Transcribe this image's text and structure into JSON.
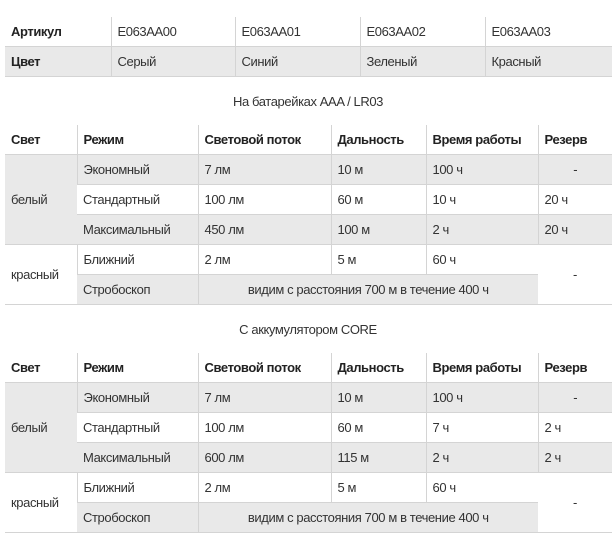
{
  "specs": {
    "article_label": "Артикул",
    "articles": [
      "E063AA00",
      "E063AA01",
      "E063AA02",
      "E063AA03"
    ],
    "color_label": "Цвет",
    "colors": [
      "Серый",
      "Синий",
      "Зеленый",
      "Красный"
    ]
  },
  "headers": [
    "Свет",
    "Режим",
    "Световой поток",
    "Дальность",
    "Время работы",
    "Резерв"
  ],
  "battery": {
    "title": "На батарейках AAA / LR03",
    "white": "белый",
    "red": "красный",
    "rows": [
      {
        "mode": "Экономный",
        "flux": "7 лм",
        "range": "10 м",
        "time": "100 ч",
        "reserve": "-"
      },
      {
        "mode": "Стандартный",
        "flux": "100 лм",
        "range": "60 м",
        "time": "10 ч",
        "reserve": "20 ч"
      },
      {
        "mode": "Максимальный",
        "flux": "450 лм",
        "range": "100 м",
        "time": "2 ч",
        "reserve": "20 ч"
      },
      {
        "mode": "Ближний",
        "flux": "2 лм",
        "range": "5 м",
        "time": "60 ч",
        "reserve": "-"
      },
      {
        "mode": "Стробоскоп",
        "note": "видим с расстояния 700 м в течение 400 ч"
      }
    ]
  },
  "accumulator": {
    "title": "С аккумулятором CORE",
    "white": "белый",
    "red": "красный",
    "rows": [
      {
        "mode": "Экономный",
        "flux": "7 лм",
        "range": "10 м",
        "time": "100 ч",
        "reserve": "-"
      },
      {
        "mode": "Стандартный",
        "flux": "100 лм",
        "range": "60 м",
        "time": "7 ч",
        "reserve": "2 ч"
      },
      {
        "mode": "Максимальный",
        "flux": "600 лм",
        "range": "115 м",
        "time": "2 ч",
        "reserve": "2 ч"
      },
      {
        "mode": "Ближний",
        "flux": "2 лм",
        "range": "5 м",
        "time": "60 ч",
        "reserve": "-"
      },
      {
        "mode": "Стробоскоп",
        "note": "видим с расстояния 700 м в течение 400 ч"
      }
    ]
  }
}
